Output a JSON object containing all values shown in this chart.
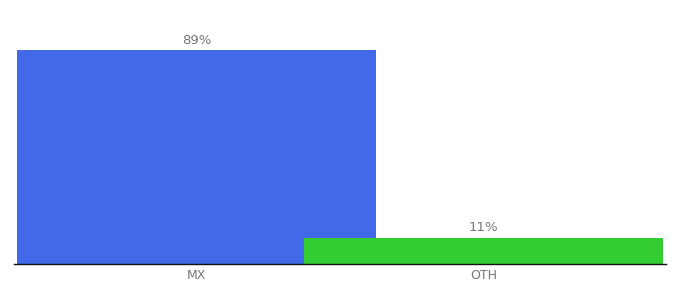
{
  "categories": [
    "MX",
    "OTH"
  ],
  "values": [
    89,
    11
  ],
  "bar_colors": [
    "#4169e8",
    "#33cc33"
  ],
  "labels": [
    "89%",
    "11%"
  ],
  "background_color": "#ffffff",
  "ylim": [
    0,
    100
  ],
  "bar_width": 0.55,
  "label_fontsize": 9.5,
  "tick_fontsize": 9,
  "x_positions": [
    0.28,
    0.72
  ]
}
